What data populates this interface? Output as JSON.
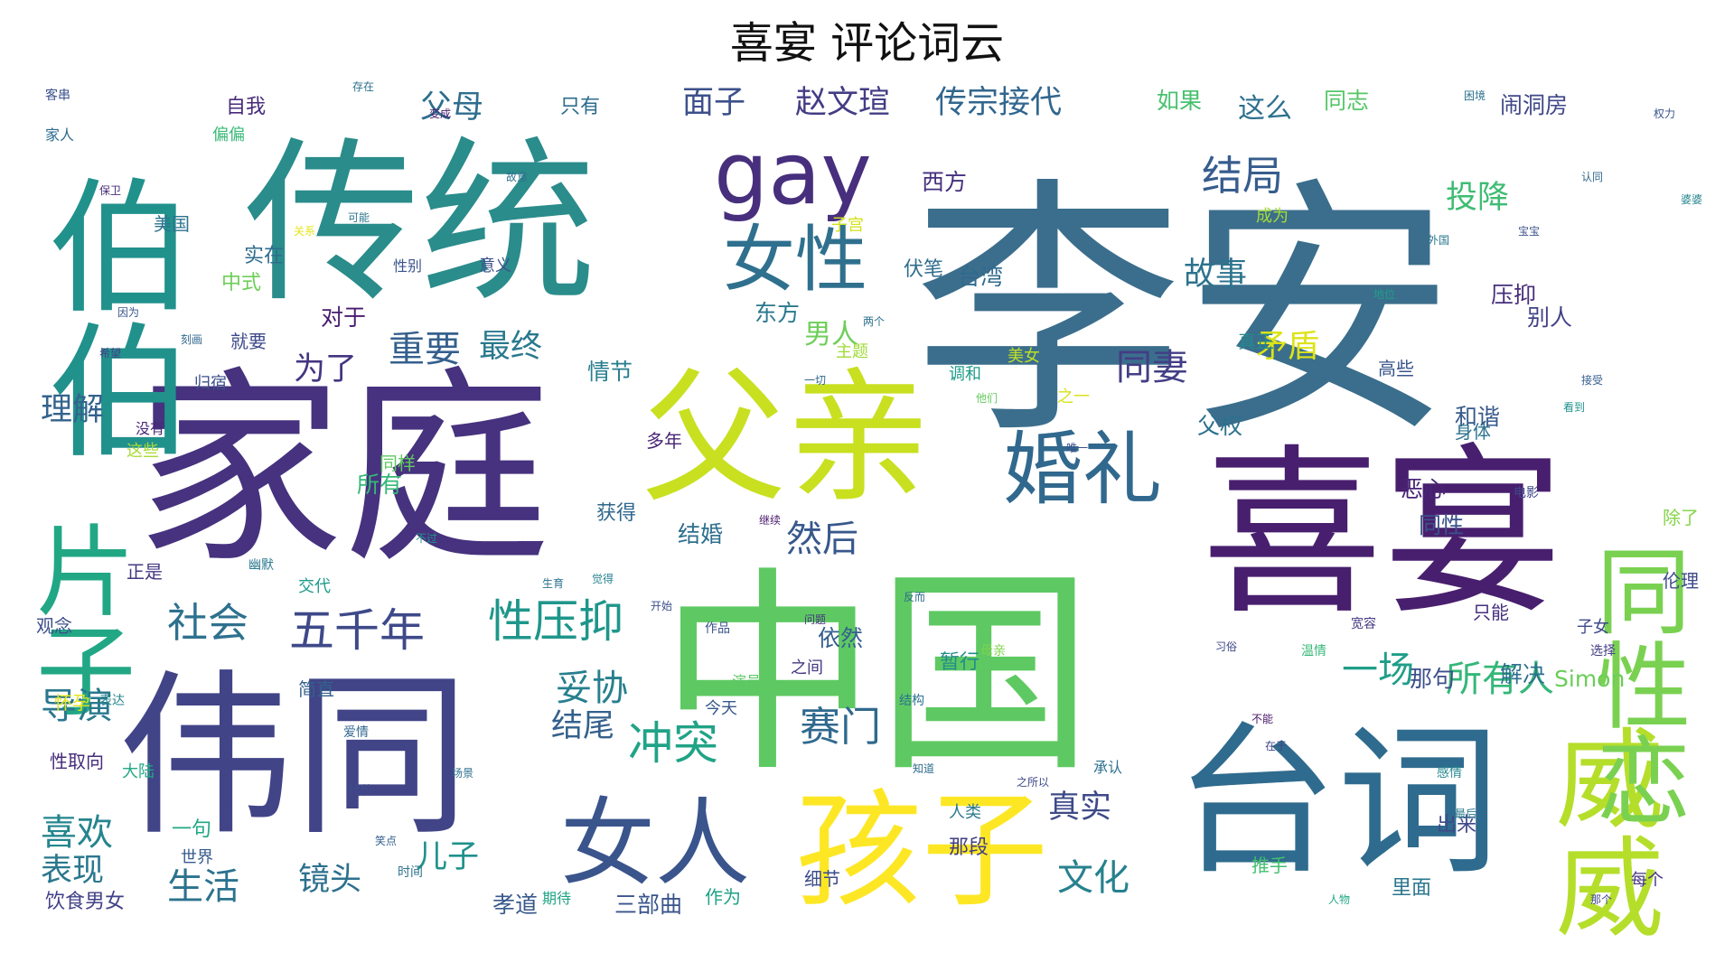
{
  "title": "喜宴 评论词云",
  "words": [
    {
      "text": "李安",
      "color": "#3b6e8c"
    },
    {
      "text": "喜宴",
      "color": "#481f6e"
    },
    {
      "text": "家庭",
      "color": "#46327e"
    },
    {
      "text": "中国",
      "color": "#5ec962"
    },
    {
      "text": "传统",
      "color": "#2a8c8b"
    },
    {
      "text": "伟同",
      "color": "#414487"
    },
    {
      "text": "父亲",
      "color": "#c8e020"
    },
    {
      "text": "台词",
      "color": "#2f6b8e"
    },
    {
      "text": "孩子",
      "color": "#fde725"
    },
    {
      "text": "gay",
      "color": "#472f7d"
    },
    {
      "text": "女人",
      "color": "#3a548c"
    },
    {
      "text": "威威",
      "color": "#b5de2b"
    },
    {
      "text": "同性恋",
      "color": "#7ad151"
    },
    {
      "text": "婚礼",
      "color": "#31688e"
    },
    {
      "text": "女性",
      "color": "#2f708e"
    },
    {
      "text": "伯伯",
      "color": "#21918c"
    },
    {
      "text": "片子",
      "color": "#22a785"
    },
    {
      "text": "性压抑",
      "color": "#1f968b"
    },
    {
      "text": "五千年",
      "color": "#3e4989"
    },
    {
      "text": "社会",
      "color": "#2d718e"
    },
    {
      "text": "冲突",
      "color": "#20a386"
    },
    {
      "text": "赛门",
      "color": "#30698e"
    },
    {
      "text": "导演",
      "color": "#2a788e"
    },
    {
      "text": "妥协",
      "color": "#277f8e"
    },
    {
      "text": "喜欢",
      "color": "#25858e"
    },
    {
      "text": "生活",
      "color": "#2c728e"
    },
    {
      "text": "文化",
      "color": "#26828e"
    },
    {
      "text": "真实",
      "color": "#3e4a89"
    },
    {
      "text": "结局",
      "color": "#365d8d"
    },
    {
      "text": "重要",
      "color": "#35608d"
    },
    {
      "text": "同妻",
      "color": "#433e85"
    },
    {
      "text": "所有人",
      "color": "#35b779"
    },
    {
      "text": "一场",
      "color": "#1f9e89"
    },
    {
      "text": "然后",
      "color": "#38588c"
    },
    {
      "text": "赵文瑄",
      "color": "#433d84"
    },
    {
      "text": "传宗接代",
      "color": "#31668e"
    },
    {
      "text": "父母",
      "color": "#2e6e8e"
    },
    {
      "text": "面子",
      "color": "#3c508b"
    },
    {
      "text": "这么",
      "color": "#2d708e"
    },
    {
      "text": "理解",
      "color": "#33638d"
    },
    {
      "text": "为了",
      "color": "#453581"
    },
    {
      "text": "最终",
      "color": "#29798e"
    },
    {
      "text": "故事",
      "color": "#2c738e"
    },
    {
      "text": "男人",
      "color": "#6ece58"
    },
    {
      "text": "矛盾",
      "color": "#dde318"
    },
    {
      "text": "投降",
      "color": "#3fbc73"
    },
    {
      "text": "表现",
      "color": "#2a778e"
    },
    {
      "text": "镜头",
      "color": "#2d708e"
    },
    {
      "text": "儿子",
      "color": "#21918c"
    },
    {
      "text": "结尾",
      "color": "#34618d"
    },
    {
      "text": "孝道",
      "color": "#38598c"
    },
    {
      "text": "三部曲",
      "color": "#3a548c"
    },
    {
      "text": "西方",
      "color": "#46307e"
    },
    {
      "text": "如果",
      "color": "#48c16e"
    },
    {
      "text": "同志",
      "color": "#55c667"
    },
    {
      "text": "闹洞房",
      "color": "#3f4788"
    },
    {
      "text": "压抑",
      "color": "#472d7b"
    },
    {
      "text": "别人",
      "color": "#424186"
    },
    {
      "text": "和谐",
      "color": "#375a8c"
    },
    {
      "text": "恶心",
      "color": "#482576"
    },
    {
      "text": "同性",
      "color": "#3b528b"
    },
    {
      "text": "解决",
      "color": "#2d708e"
    },
    {
      "text": "那句",
      "color": "#3d4e8a"
    },
    {
      "text": "Simon",
      "color": "#6ccd5a"
    },
    {
      "text": "自我",
      "color": "#472a7a"
    },
    {
      "text": "只有",
      "color": "#2e6d8e"
    },
    {
      "text": "对于",
      "color": "#481b6d"
    },
    {
      "text": "台湾",
      "color": "#306a8e"
    },
    {
      "text": "东方",
      "color": "#2a788e"
    },
    {
      "text": "情节",
      "color": "#277e8e"
    },
    {
      "text": "父权",
      "color": "#2c718e"
    },
    {
      "text": "所有",
      "color": "#37b878"
    },
    {
      "text": "结婚",
      "color": "#2e6f8e"
    },
    {
      "text": "依然",
      "color": "#355f8d"
    },
    {
      "text": "暂行",
      "color": "#228c8d"
    },
    {
      "text": "一句",
      "color": "#22a884"
    },
    {
      "text": "那段",
      "color": "#433e85"
    },
    {
      "text": "出来",
      "color": "#3e4989"
    },
    {
      "text": "里面",
      "color": "#2a768e"
    },
    {
      "text": "推手",
      "color": "#44bf70"
    },
    {
      "text": "作为",
      "color": "#1fa187"
    },
    {
      "text": "细节",
      "color": "#3d4d8a"
    },
    {
      "text": "世界",
      "color": "#375b8d"
    },
    {
      "text": "人类",
      "color": "#2a778e"
    },
    {
      "text": "饮食男女",
      "color": "#414287"
    },
    {
      "text": "怀孕",
      "color": "#e2e418"
    },
    {
      "text": "性取向",
      "color": "#472c7a"
    },
    {
      "text": "观念",
      "color": "#3c4f8a"
    },
    {
      "text": "交代",
      "color": "#1e9b8a"
    },
    {
      "text": "正是",
      "color": "#453882"
    },
    {
      "text": "大陆",
      "color": "#22a884"
    },
    {
      "text": "简直",
      "color": "#35608d"
    },
    {
      "text": "中式",
      "color": "#6ece58"
    },
    {
      "text": "美国",
      "color": "#2c738e"
    },
    {
      "text": "就要",
      "color": "#3e4989"
    },
    {
      "text": "实在",
      "color": "#2f6c8e"
    },
    {
      "text": "意义",
      "color": "#3b528b"
    },
    {
      "text": "成为",
      "color": "#a5db36"
    },
    {
      "text": "伏笔",
      "color": "#2f6c8e"
    },
    {
      "text": "子女",
      "color": "#3e4a89"
    },
    {
      "text": "只能",
      "color": "#462f7e"
    },
    {
      "text": "高些",
      "color": "#39568c"
    },
    {
      "text": "真正",
      "color": "#238a8d"
    },
    {
      "text": "除了",
      "color": "#86d549"
    },
    {
      "text": "伦理",
      "color": "#3e4a89"
    },
    {
      "text": "调和",
      "color": "#1e9c89"
    },
    {
      "text": "身体",
      "color": "#2c728e"
    },
    {
      "text": "之间",
      "color": "#453781"
    },
    {
      "text": "多年",
      "color": "#482576"
    },
    {
      "text": "获得",
      "color": "#31688e"
    },
    {
      "text": "同样",
      "color": "#60ca60"
    },
    {
      "text": "今天",
      "color": "#38598c"
    },
    {
      "text": "每个",
      "color": "#463480"
    },
    {
      "text": "归宿",
      "color": "#3c4f8a"
    },
    {
      "text": "家人",
      "color": "#2f6b8e"
    },
    {
      "text": "主题",
      "color": "#a0da39"
    },
    {
      "text": "子宫",
      "color": "#d2e21b"
    },
    {
      "text": "美女",
      "color": "#bddf26"
    },
    {
      "text": "之一",
      "color": "#d8e219"
    },
    {
      "text": "客串",
      "color": "#3b528b"
    },
    {
      "text": "这些",
      "color": "#a8db34"
    },
    {
      "text": "偏偏",
      "color": "#38b977"
    },
    {
      "text": "性别",
      "color": "#3a548c"
    },
    {
      "text": "承认",
      "color": "#2d708e"
    },
    {
      "text": "代价",
      "color": "#3d4d8a"
    },
    {
      "text": "演员",
      "color": "#5cc863"
    },
    {
      "text": "没有",
      "color": "#482878"
    },
    {
      "text": "期待",
      "color": "#20a386"
    },
    {
      "text": "时间",
      "color": "#2c738e"
    },
    {
      "text": "表达",
      "color": "#25848e"
    },
    {
      "text": "作品",
      "color": "#3b528b"
    },
    {
      "text": "母亲",
      "color": "#7fd34e"
    },
    {
      "text": "结构",
      "color": "#2c728e"
    },
    {
      "text": "宽容",
      "color": "#453882"
    },
    {
      "text": "温情",
      "color": "#37b878"
    },
    {
      "text": "爱情",
      "color": "#31688e"
    },
    {
      "text": "幽默",
      "color": "#2a788e"
    },
    {
      "text": "电影",
      "color": "#3e4989"
    },
    {
      "text": "感情",
      "color": "#24868e"
    },
    {
      "text": "选择",
      "color": "#433e85"
    },
    {
      "text": "保卫",
      "color": "#472c7a"
    },
    {
      "text": "一切",
      "color": "#31688e"
    },
    {
      "text": "两个",
      "color": "#2d708e"
    },
    {
      "text": "问题",
      "color": "#46337f"
    },
    {
      "text": "他们",
      "color": "#65cb5e"
    },
    {
      "text": "唯一",
      "color": "#3b528b"
    },
    {
      "text": "看到",
      "color": "#20928c"
    },
    {
      "text": "接受",
      "color": "#355e8d"
    },
    {
      "text": "最后",
      "color": "#2a788e"
    },
    {
      "text": "那个",
      "color": "#3f4788"
    },
    {
      "text": "不能",
      "color": "#481769"
    },
    {
      "text": "知道",
      "color": "#2e6e8e"
    },
    {
      "text": "觉得",
      "color": "#27808e"
    },
    {
      "text": "开始",
      "color": "#3c4f8a"
    },
    {
      "text": "不过",
      "color": "#1f958b"
    },
    {
      "text": "因为",
      "color": "#39568c"
    },
    {
      "text": "可能",
      "color": "#2b758e"
    },
    {
      "text": "变成",
      "color": "#481f70"
    },
    {
      "text": "存在",
      "color": "#2c718e"
    },
    {
      "text": "故意",
      "color": "#2d708e"
    },
    {
      "text": "生育",
      "color": "#2c738e"
    },
    {
      "text": "权力",
      "color": "#3a548c"
    },
    {
      "text": "认同",
      "color": "#30698e"
    },
    {
      "text": "婆婆",
      "color": "#25848e"
    },
    {
      "text": "宝宝",
      "color": "#3b528b"
    },
    {
      "text": "外国",
      "color": "#2a788e"
    },
    {
      "text": "地位",
      "color": "#1f9e89"
    },
    {
      "text": "希望",
      "color": "#424086"
    },
    {
      "text": "继续",
      "color": "#481a6c"
    },
    {
      "text": "反而",
      "color": "#2e6d8e"
    },
    {
      "text": "之所以",
      "color": "#3e4a89"
    },
    {
      "text": "笑点",
      "color": "#345f8d"
    },
    {
      "text": "场景",
      "color": "#2c718e"
    },
    {
      "text": "习俗",
      "color": "#3f4889"
    },
    {
      "text": "人物",
      "color": "#22a884"
    },
    {
      "text": "在于",
      "color": "#414487"
    },
    {
      "text": "刻画",
      "color": "#31688e"
    },
    {
      "text": "困境",
      "color": "#2c738e"
    },
    {
      "text": "关系",
      "color": "#e5e419"
    },
    {
      "text": "说出",
      "color": "#3c4f8a"
    },
    {
      "text": "同时",
      "color": "#3b528b"
    },
    {
      "text": "永远",
      "color": "#472f7d"
    },
    {
      "text": "这部",
      "color": "#2d708e"
    },
    {
      "text": "看看",
      "color": "#cae11f"
    },
    {
      "text": "只是",
      "color": "#3e4989"
    }
  ]
}
